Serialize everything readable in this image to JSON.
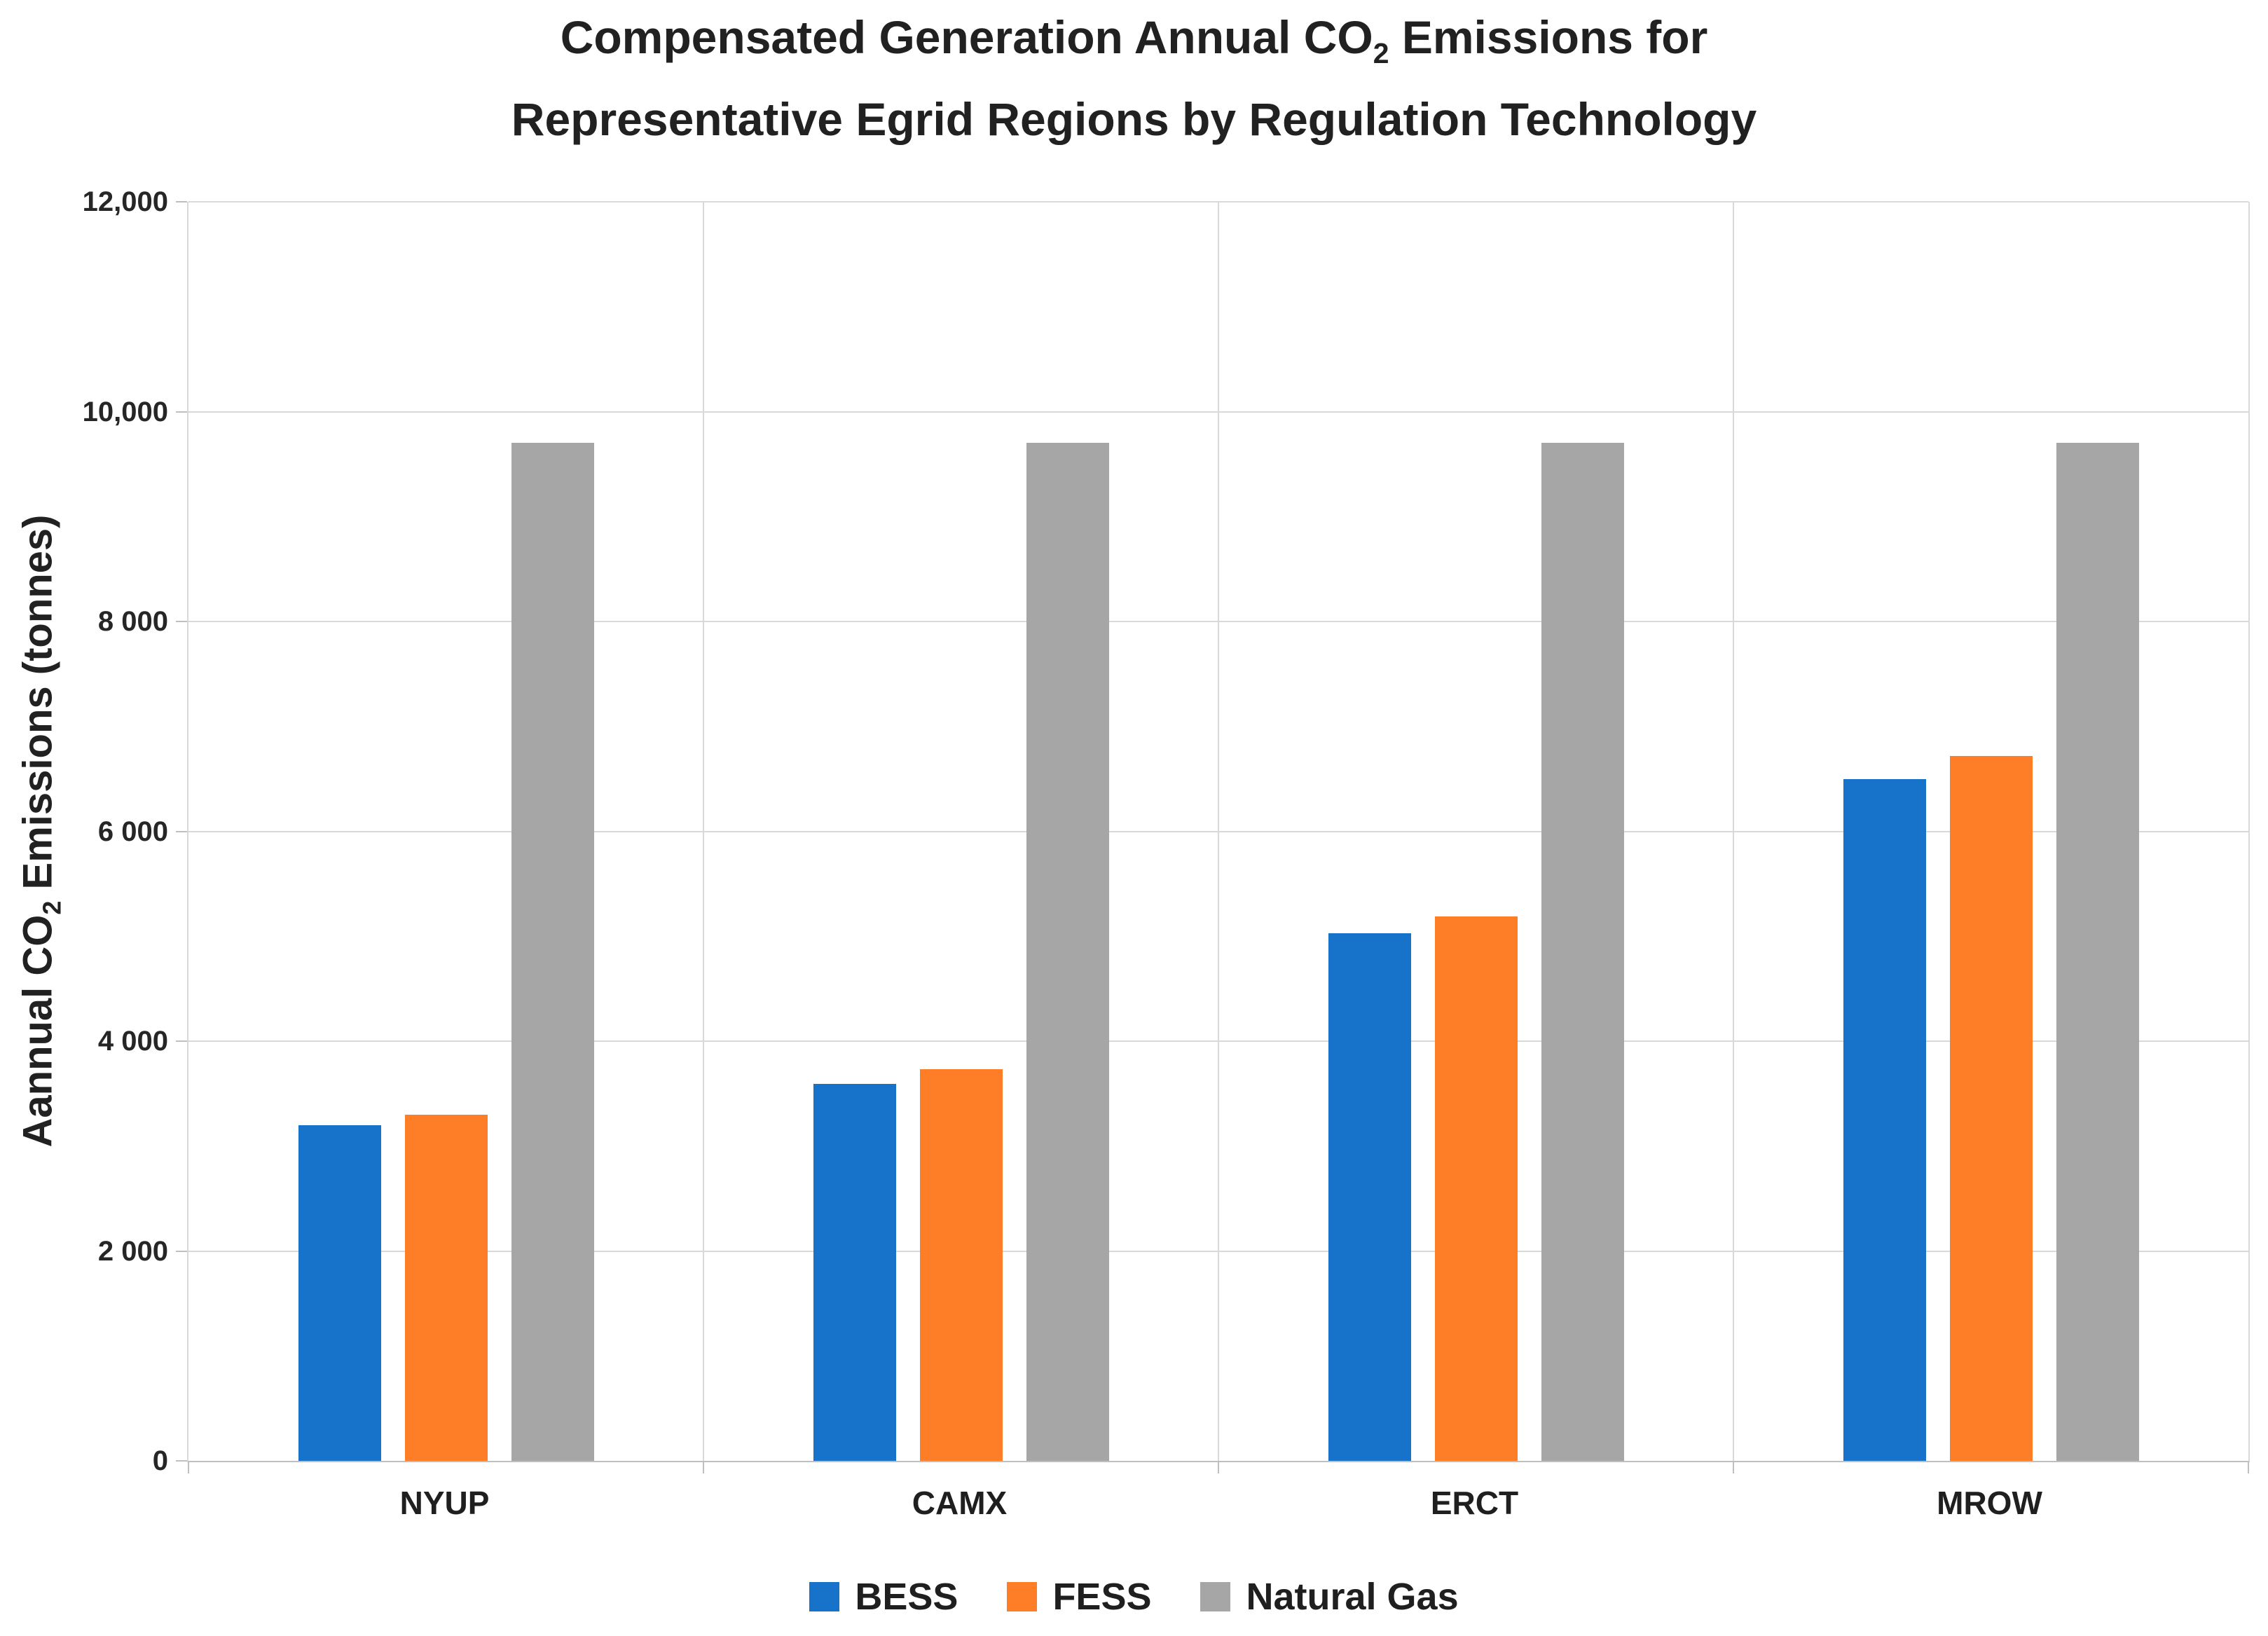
{
  "title": {
    "line1_pre": "Compensated Generation Annual CO",
    "line1_sub": "2",
    "line1_post": " Emissions for",
    "line2": "Representative Egrid Regions by Regulation Technology"
  },
  "y_axis": {
    "label_pre": "Aannual CO",
    "label_sub": "2",
    "label_post": " Emissions (tonnes)",
    "tick_labels": [
      "12,000",
      "10,000",
      "8 000",
      "6 000",
      "4 000",
      "2 000",
      "0"
    ]
  },
  "colors": {
    "bess_blue": "#1673C9",
    "fess_orange": "#FD7E26",
    "natural_gas_gray": "#A6A6A6",
    "gridline": "#D9D9D9",
    "axis_line": "#BFBFBF"
  },
  "chart_data": {
    "type": "bar",
    "title": "Compensated Generation Annual CO2 Emissions for Representative Egrid Regions by Regulation Technology",
    "ylabel": "Aannual CO2 Emissions (tonnes)",
    "xlabel": "",
    "categories": [
      "NYUP",
      "CAMX",
      "ERCT",
      "MROW"
    ],
    "series": [
      {
        "name": "BESS",
        "color": "#1673C9",
        "values": [
          3200,
          3590,
          5030,
          6500
        ]
      },
      {
        "name": "FESS",
        "color": "#FD7E26",
        "values": [
          3300,
          3730,
          5190,
          6720
        ]
      },
      {
        "name": "Natural Gas",
        "color": "#A6A6A6",
        "values": [
          9700,
          9700,
          9700,
          9700
        ]
      }
    ],
    "ylim": [
      0,
      12000
    ],
    "ytick_interval": 2000,
    "grid": "horizontal gridlines every 2000; vertical separators between category panels",
    "legend_position": "bottom"
  }
}
